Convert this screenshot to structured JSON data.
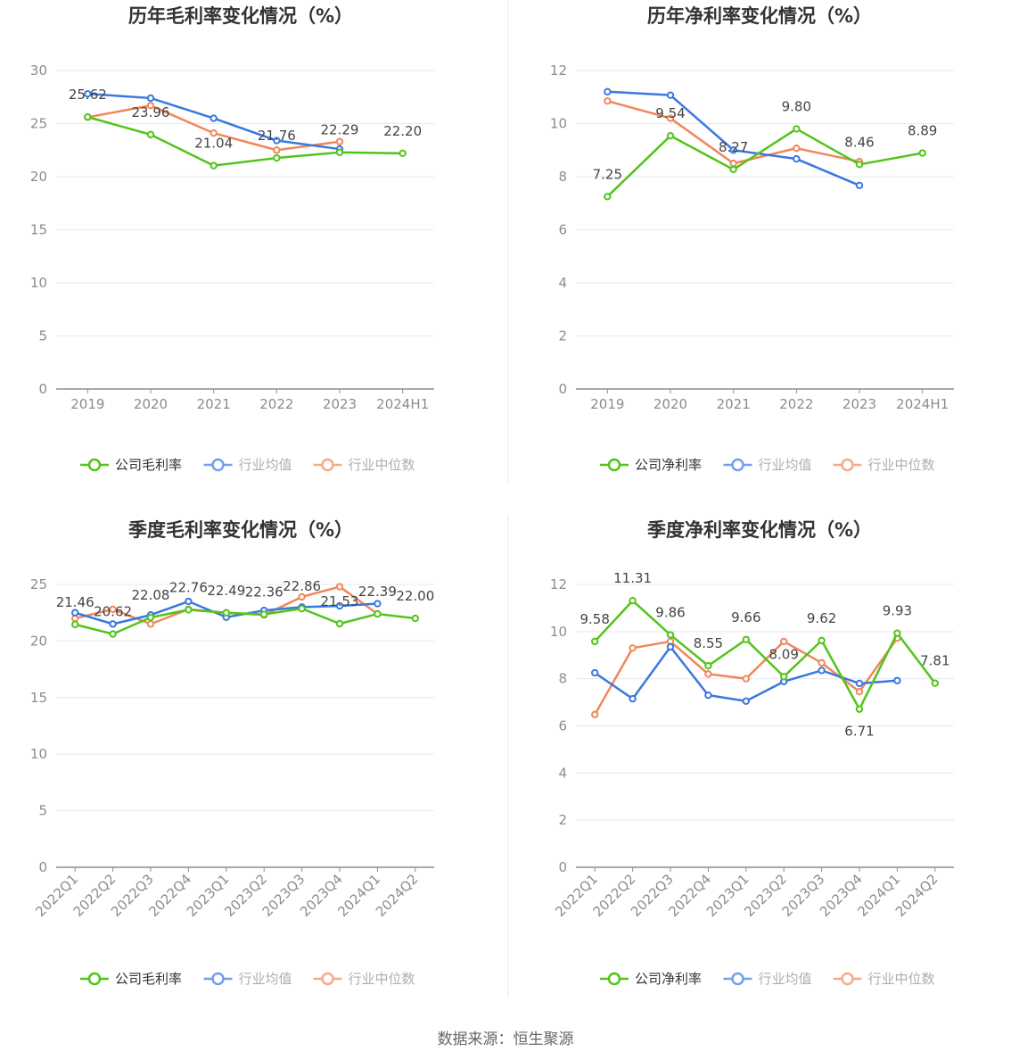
{
  "colors": {
    "company": "#52c41a",
    "industry_avg": "#3a78e0",
    "industry_median": "#f0875a",
    "grid": "#e6e8f0",
    "axis": "#8c8c99"
  },
  "footer": {
    "source_text": "数据来源：恒生聚源"
  },
  "chart_data": [
    {
      "type": "line",
      "title": "历年毛利率变化情况（%）",
      "categories": [
        "2019",
        "2020",
        "2021",
        "2022",
        "2023",
        "2024H1"
      ],
      "ylim": [
        0,
        30
      ],
      "yticks": [
        0,
        5,
        10,
        15,
        20,
        25,
        30
      ],
      "grid": true,
      "legend_position": "bottom",
      "series": [
        {
          "name": "公司毛利率",
          "key": "company",
          "values": [
            25.62,
            23.96,
            21.04,
            21.76,
            22.29,
            22.2
          ],
          "labels": [
            "25.62",
            "23.96",
            "21.04",
            "21.76",
            "22.29",
            "22.20"
          ]
        },
        {
          "name": "行业均值",
          "key": "industry_avg",
          "values": [
            27.8,
            27.4,
            25.5,
            23.4,
            22.6,
            null
          ]
        },
        {
          "name": "行业中位数",
          "key": "industry_median",
          "values": [
            25.6,
            26.7,
            24.1,
            22.5,
            23.3,
            null
          ]
        }
      ]
    },
    {
      "type": "line",
      "title": "历年净利率变化情况（%）",
      "categories": [
        "2019",
        "2020",
        "2021",
        "2022",
        "2023",
        "2024H1"
      ],
      "ylim": [
        0,
        12
      ],
      "yticks": [
        0,
        2,
        4,
        6,
        8,
        10,
        12
      ],
      "grid": true,
      "legend_position": "bottom",
      "series": [
        {
          "name": "公司净利率",
          "key": "company",
          "values": [
            7.25,
            9.54,
            8.27,
            9.8,
            8.46,
            8.89
          ],
          "labels": [
            "7.25",
            "9.54",
            "8.27",
            "9.80",
            "8.46",
            "8.89"
          ]
        },
        {
          "name": "行业均值",
          "key": "industry_avg",
          "values": [
            11.2,
            11.07,
            9.0,
            8.67,
            7.67,
            null
          ]
        },
        {
          "name": "行业中位数",
          "key": "industry_median",
          "values": [
            10.85,
            10.2,
            8.5,
            9.07,
            8.57,
            null
          ]
        }
      ]
    },
    {
      "type": "line",
      "title": "季度毛利率变化情况（%）",
      "categories": [
        "2022Q1",
        "2022Q2",
        "2022Q3",
        "2022Q4",
        "2023Q1",
        "2023Q2",
        "2023Q3",
        "2023Q4",
        "2024Q1",
        "2024Q2"
      ],
      "ylim": [
        0,
        25
      ],
      "yticks": [
        0,
        5,
        10,
        15,
        20,
        25
      ],
      "grid": true,
      "legend_position": "bottom",
      "series": [
        {
          "name": "公司毛利率",
          "key": "company",
          "values": [
            21.46,
            20.62,
            22.08,
            22.76,
            22.49,
            22.36,
            22.86,
            21.53,
            22.39,
            22.0
          ],
          "labels": [
            "21.46",
            "20.62",
            "22.08",
            "22.76",
            "22.49",
            "22.36",
            "22.86",
            "21.53",
            "22.39",
            "22.00"
          ]
        },
        {
          "name": "行业均值",
          "key": "industry_avg",
          "values": [
            22.5,
            21.5,
            22.3,
            23.5,
            22.1,
            22.7,
            23.0,
            23.1,
            23.3,
            null
          ]
        },
        {
          "name": "行业中位数",
          "key": "industry_median",
          "values": [
            22.0,
            22.8,
            21.5,
            22.8,
            22.5,
            22.3,
            23.9,
            24.8,
            22.4,
            null
          ]
        }
      ]
    },
    {
      "type": "line",
      "title": "季度净利率变化情况（%）",
      "categories": [
        "2022Q1",
        "2022Q2",
        "2022Q3",
        "2022Q4",
        "2023Q1",
        "2023Q2",
        "2023Q3",
        "2023Q4",
        "2024Q1",
        "2024Q2"
      ],
      "ylim": [
        0,
        12
      ],
      "yticks": [
        0,
        2,
        4,
        6,
        8,
        10,
        12
      ],
      "grid": true,
      "legend_position": "bottom",
      "series": [
        {
          "name": "公司净利率",
          "key": "company",
          "values": [
            9.58,
            11.31,
            9.86,
            8.55,
            9.66,
            8.09,
            9.62,
            6.71,
            9.93,
            7.81
          ],
          "labels": [
            "9.58",
            "11.31",
            "9.86",
            "8.55",
            "9.66",
            "8.09",
            "9.62",
            "6.71",
            "9.93",
            "7.81"
          ]
        },
        {
          "name": "行业均值",
          "key": "industry_avg",
          "values": [
            8.25,
            7.15,
            9.35,
            7.3,
            7.05,
            7.88,
            8.35,
            7.8,
            7.92,
            null
          ]
        },
        {
          "name": "行业中位数",
          "key": "industry_median",
          "values": [
            6.48,
            9.3,
            9.58,
            8.2,
            8.0,
            9.58,
            8.67,
            7.45,
            9.72,
            null
          ]
        }
      ]
    }
  ]
}
